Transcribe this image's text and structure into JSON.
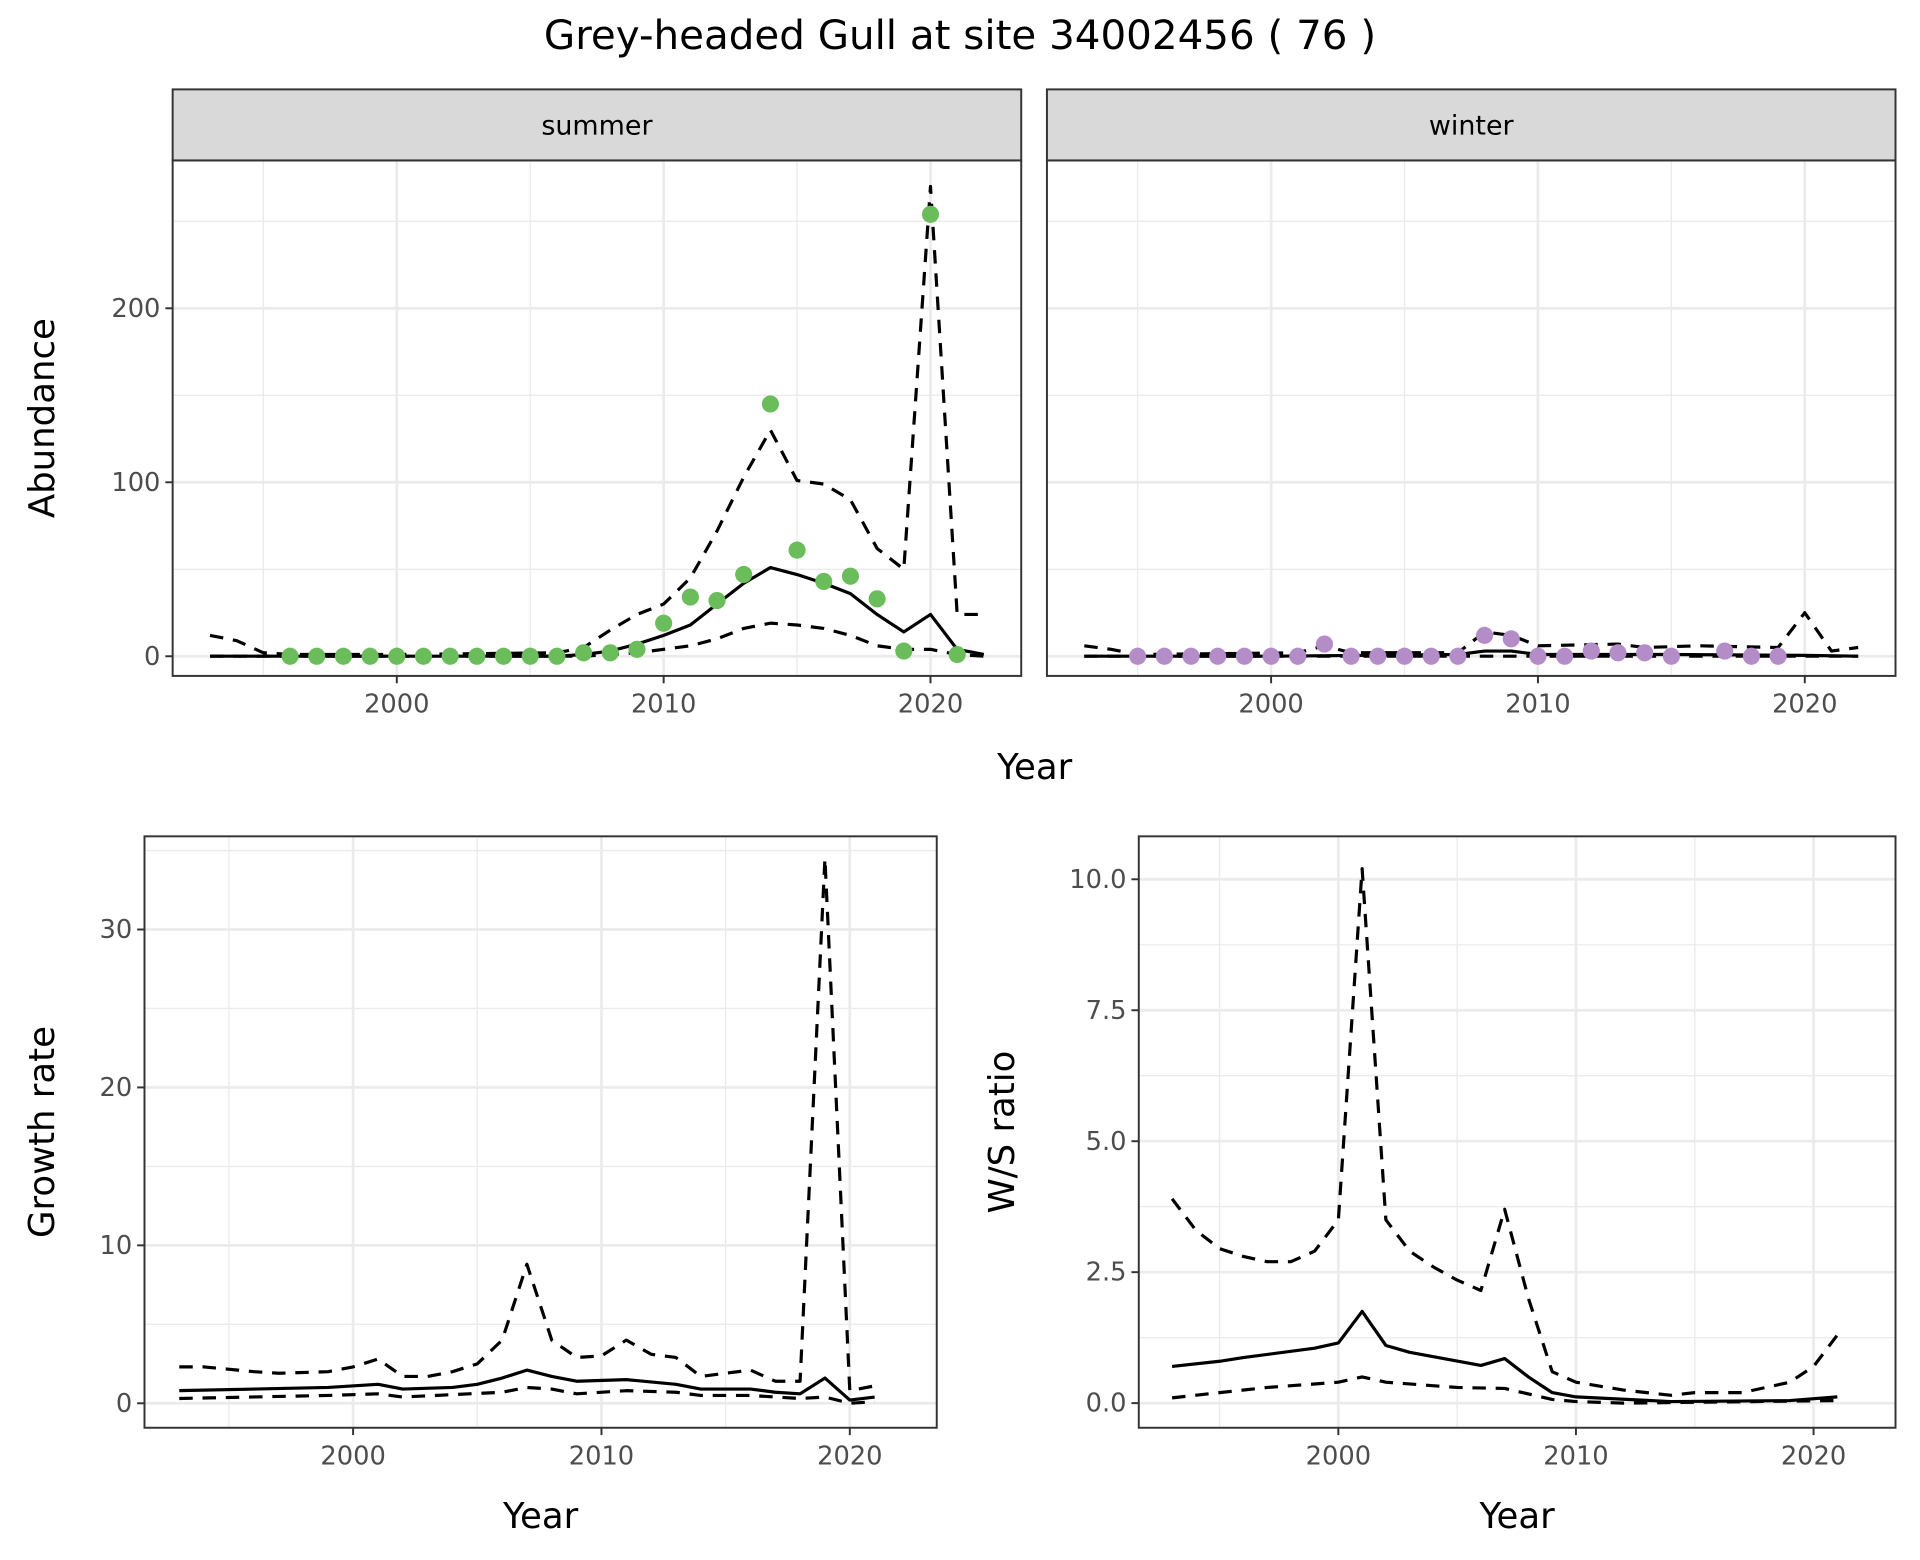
{
  "title": "Grey-headed Gull at site 34002456 ( 76 )",
  "colors": {
    "summer": "#6abd5a",
    "winter": "#b48cc8"
  },
  "chart_data": [
    {
      "type": "line",
      "panel": "summer",
      "strip": "summer",
      "xlabel": "Year",
      "ylabel": "Abundance",
      "xlim": [
        1991.6,
        2023.4
      ],
      "ylim": [
        -11.3,
        285
      ],
      "xticks": [
        2000,
        2010,
        2020
      ],
      "yticks": [
        0,
        100,
        200
      ],
      "grid": true,
      "points": {
        "x": [
          1996,
          1997,
          1998,
          1999,
          2000,
          2001,
          2002,
          2003,
          2004,
          2005,
          2006,
          2007,
          2008,
          2009,
          2010,
          2011,
          2012,
          2013,
          2014,
          2015,
          2016,
          2017,
          2018,
          2019,
          2020,
          2021
        ],
        "y": [
          0,
          0,
          0,
          0,
          0,
          0,
          0,
          0,
          0,
          0,
          0,
          2,
          2,
          4,
          19,
          34,
          32,
          47,
          145,
          61,
          43,
          46,
          33,
          3,
          254,
          1
        ]
      },
      "series": [
        {
          "name": "estimate",
          "style": "solid",
          "x": [
            1993,
            1995,
            2000,
            2006,
            2007,
            2008,
            2009,
            2010,
            2011,
            2012,
            2013,
            2014,
            2015,
            2016,
            2017,
            2018,
            2019,
            2020,
            2021,
            2022
          ],
          "y": [
            0,
            0,
            0,
            0,
            1,
            3,
            7,
            12,
            18,
            30,
            42,
            51,
            47,
            42,
            36,
            24,
            14,
            24,
            4,
            1
          ]
        },
        {
          "name": "upper",
          "style": "dashed",
          "x": [
            1993,
            1994,
            1995,
            1996,
            2000,
            2006,
            2007,
            2008,
            2009,
            2010,
            2011,
            2012,
            2013,
            2014,
            2015,
            2016,
            2017,
            2018,
            2019,
            2020,
            2021,
            2022
          ],
          "y": [
            12,
            9,
            2,
            1,
            1,
            2,
            5,
            15,
            24,
            30,
            45,
            72,
            103,
            130,
            101,
            99,
            90,
            62,
            50,
            270,
            24,
            24
          ]
        },
        {
          "name": "lower",
          "style": "dashed",
          "x": [
            1993,
            2000,
            2007,
            2008,
            2009,
            2010,
            2011,
            2012,
            2013,
            2014,
            2015,
            2016,
            2017,
            2018,
            2019,
            2020,
            2021,
            2022
          ],
          "y": [
            0,
            0,
            0,
            1,
            2,
            4,
            6,
            10,
            16,
            19,
            18,
            16,
            12,
            6,
            4,
            4,
            1,
            0
          ]
        }
      ]
    },
    {
      "type": "line",
      "panel": "winter",
      "strip": "winter",
      "xlim": [
        1991.6,
        2023.4
      ],
      "ylim": [
        -11.3,
        285
      ],
      "xticks": [
        2000,
        2010,
        2020
      ],
      "grid": true,
      "points": {
        "x": [
          1995,
          1996,
          1997,
          1998,
          1999,
          2000,
          2001,
          2002,
          2003,
          2004,
          2005,
          2006,
          2007,
          2008,
          2009,
          2010,
          2011,
          2012,
          2013,
          2014,
          2015,
          2017,
          2018,
          2019
        ],
        "y": [
          0,
          0,
          0,
          0,
          0,
          0,
          0,
          7,
          0,
          0,
          0,
          0,
          0,
          12,
          10,
          0,
          0,
          3,
          2,
          2,
          0,
          3,
          0,
          0
        ]
      },
      "series": [
        {
          "name": "estimate",
          "style": "solid",
          "x": [
            1993,
            2000,
            2007,
            2008,
            2009,
            2010,
            2015,
            2020,
            2022
          ],
          "y": [
            0,
            0,
            1,
            3,
            3,
            1,
            1,
            0.5,
            0
          ]
        },
        {
          "name": "upper",
          "style": "dashed",
          "x": [
            1993,
            1994,
            1995,
            2001,
            2002,
            2003,
            2007,
            2008,
            2009,
            2010,
            2013,
            2014,
            2016,
            2019,
            2020,
            2021,
            2022
          ],
          "y": [
            6,
            4,
            1,
            2,
            6,
            2,
            2,
            14,
            12,
            6,
            7,
            5,
            6,
            5,
            25,
            3,
            5
          ]
        },
        {
          "name": "lower",
          "style": "dashed",
          "x": [
            1993,
            2022
          ],
          "y": [
            0,
            0
          ]
        }
      ]
    },
    {
      "type": "line",
      "panel": "growth",
      "xlabel": "Year",
      "ylabel": "Growth rate",
      "xlim": [
        1991.6,
        2023.5
      ],
      "ylim": [
        -1.55,
        35.9
      ],
      "xticks": [
        2000,
        2010,
        2020
      ],
      "yticks": [
        0,
        10,
        20,
        30
      ],
      "grid": true,
      "series": [
        {
          "name": "estimate",
          "style": "solid",
          "x": [
            1993,
            1999,
            2001,
            2002,
            2004,
            2005,
            2006,
            2007,
            2008,
            2009,
            2011,
            2013,
            2014,
            2016,
            2017,
            2018,
            2019,
            2020,
            2021
          ],
          "y": [
            0.8,
            1.0,
            1.2,
            0.9,
            1.0,
            1.2,
            1.6,
            2.1,
            1.7,
            1.4,
            1.5,
            1.2,
            0.9,
            0.9,
            0.7,
            0.6,
            1.6,
            0.2,
            0.4
          ]
        },
        {
          "name": "upper",
          "style": "dashed",
          "x": [
            1993,
            1994,
            1996,
            1997,
            1999,
            2000,
            2001,
            2002,
            2003,
            2004,
            2005,
            2006,
            2007,
            2008,
            2009,
            2010,
            2011,
            2012,
            2013,
            2014,
            2015,
            2016,
            2017,
            2018,
            2019,
            2020,
            2021
          ],
          "y": [
            2.3,
            2.3,
            2.0,
            1.9,
            2.0,
            2.3,
            2.8,
            1.7,
            1.7,
            2.0,
            2.5,
            4.0,
            8.8,
            4.0,
            2.9,
            3.0,
            4.0,
            3.1,
            2.9,
            1.7,
            1.9,
            2.1,
            1.4,
            1.4,
            34.5,
            0.8,
            1.1
          ]
        },
        {
          "name": "lower",
          "style": "dashed",
          "x": [
            1993,
            1999,
            2001,
            2002,
            2006,
            2007,
            2008,
            2009,
            2011,
            2013,
            2014,
            2016,
            2017,
            2018,
            2019,
            2020,
            2021
          ],
          "y": [
            0.3,
            0.5,
            0.6,
            0.4,
            0.7,
            1.0,
            0.9,
            0.6,
            0.8,
            0.7,
            0.5,
            0.5,
            0.4,
            0.3,
            0.4,
            0.0,
            0.1
          ]
        }
      ]
    },
    {
      "type": "line",
      "panel": "ratio",
      "xlabel": "Year",
      "ylabel": "W/S ratio",
      "xlim": [
        1991.6,
        2023.45
      ],
      "ylim": [
        -0.47,
        10.82
      ],
      "xticks": [
        2000,
        2010,
        2020
      ],
      "yticks": [
        0,
        2.5,
        5,
        7.5,
        10
      ],
      "ytick_labels": [
        "0.0",
        "2.5",
        "5.0",
        "7.5",
        "10.0"
      ],
      "grid": true,
      "series": [
        {
          "name": "estimate",
          "style": "solid",
          "x": [
            1993,
            1995,
            1996,
            1999,
            2000,
            2001,
            2002,
            2003,
            2006,
            2007,
            2008,
            2009,
            2010,
            2014,
            2019,
            2021
          ],
          "y": [
            0.7,
            0.8,
            0.87,
            1.05,
            1.15,
            1.75,
            1.1,
            0.97,
            0.72,
            0.85,
            0.5,
            0.2,
            0.12,
            0.03,
            0.05,
            0.12
          ]
        },
        {
          "name": "upper",
          "style": "dashed",
          "x": [
            1993,
            1994,
            1995,
            1996,
            1997,
            1998,
            1999,
            2000,
            2001,
            2002,
            2003,
            2004,
            2005,
            2006,
            2007,
            2008,
            2009,
            2010,
            2012,
            2014,
            2015,
            2017,
            2019,
            2020,
            2021
          ],
          "y": [
            3.9,
            3.3,
            2.95,
            2.8,
            2.7,
            2.7,
            2.9,
            3.5,
            10.2,
            3.5,
            2.9,
            2.6,
            2.35,
            2.15,
            3.7,
            2.0,
            0.6,
            0.4,
            0.25,
            0.15,
            0.2,
            0.2,
            0.4,
            0.7,
            1.3
          ]
        },
        {
          "name": "lower",
          "style": "dashed",
          "x": [
            1993,
            1995,
            1997,
            2000,
            2001,
            2002,
            2005,
            2007,
            2009,
            2010,
            2012,
            2021
          ],
          "y": [
            0.1,
            0.2,
            0.3,
            0.4,
            0.5,
            0.4,
            0.3,
            0.28,
            0.07,
            0.03,
            0.0,
            0.05
          ]
        }
      ]
    }
  ]
}
